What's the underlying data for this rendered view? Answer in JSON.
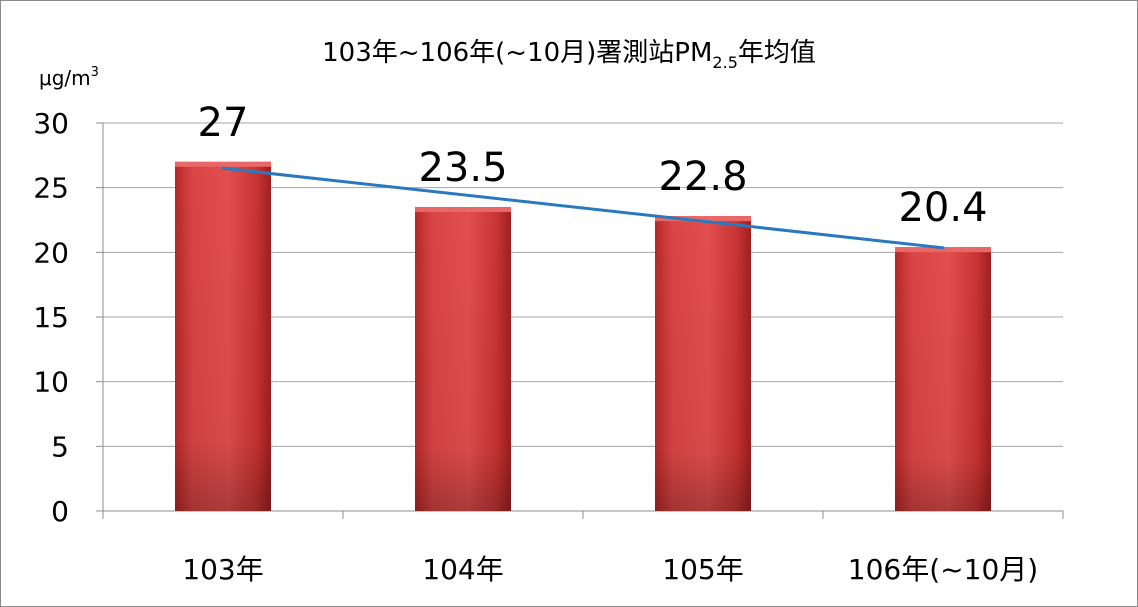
{
  "chart_data": {
    "type": "bar",
    "title": "103年~106年(~10月)署測站PM",
    "title_subscript": "2.5",
    "title_suffix": "年均值",
    "unit_label": "μg/m",
    "unit_superscript": "3",
    "categories": [
      "103年",
      "104年",
      "105年",
      "106年(~10月)"
    ],
    "values": [
      27,
      23.5,
      22.8,
      20.4
    ],
    "data_labels": [
      "27",
      "23.5",
      "22.8",
      "20.4"
    ],
    "ylim": [
      0,
      30
    ],
    "yticks": [
      "0",
      "5",
      "10",
      "15",
      "20",
      "25",
      "30"
    ],
    "grid": true,
    "legend": "none",
    "trendline": {
      "type": "linear"
    },
    "colors": {
      "bar": "#d03a3a",
      "bar_dark": "#8e1616",
      "trendline": "#2a78be",
      "grid": "#a6a6a6"
    }
  }
}
